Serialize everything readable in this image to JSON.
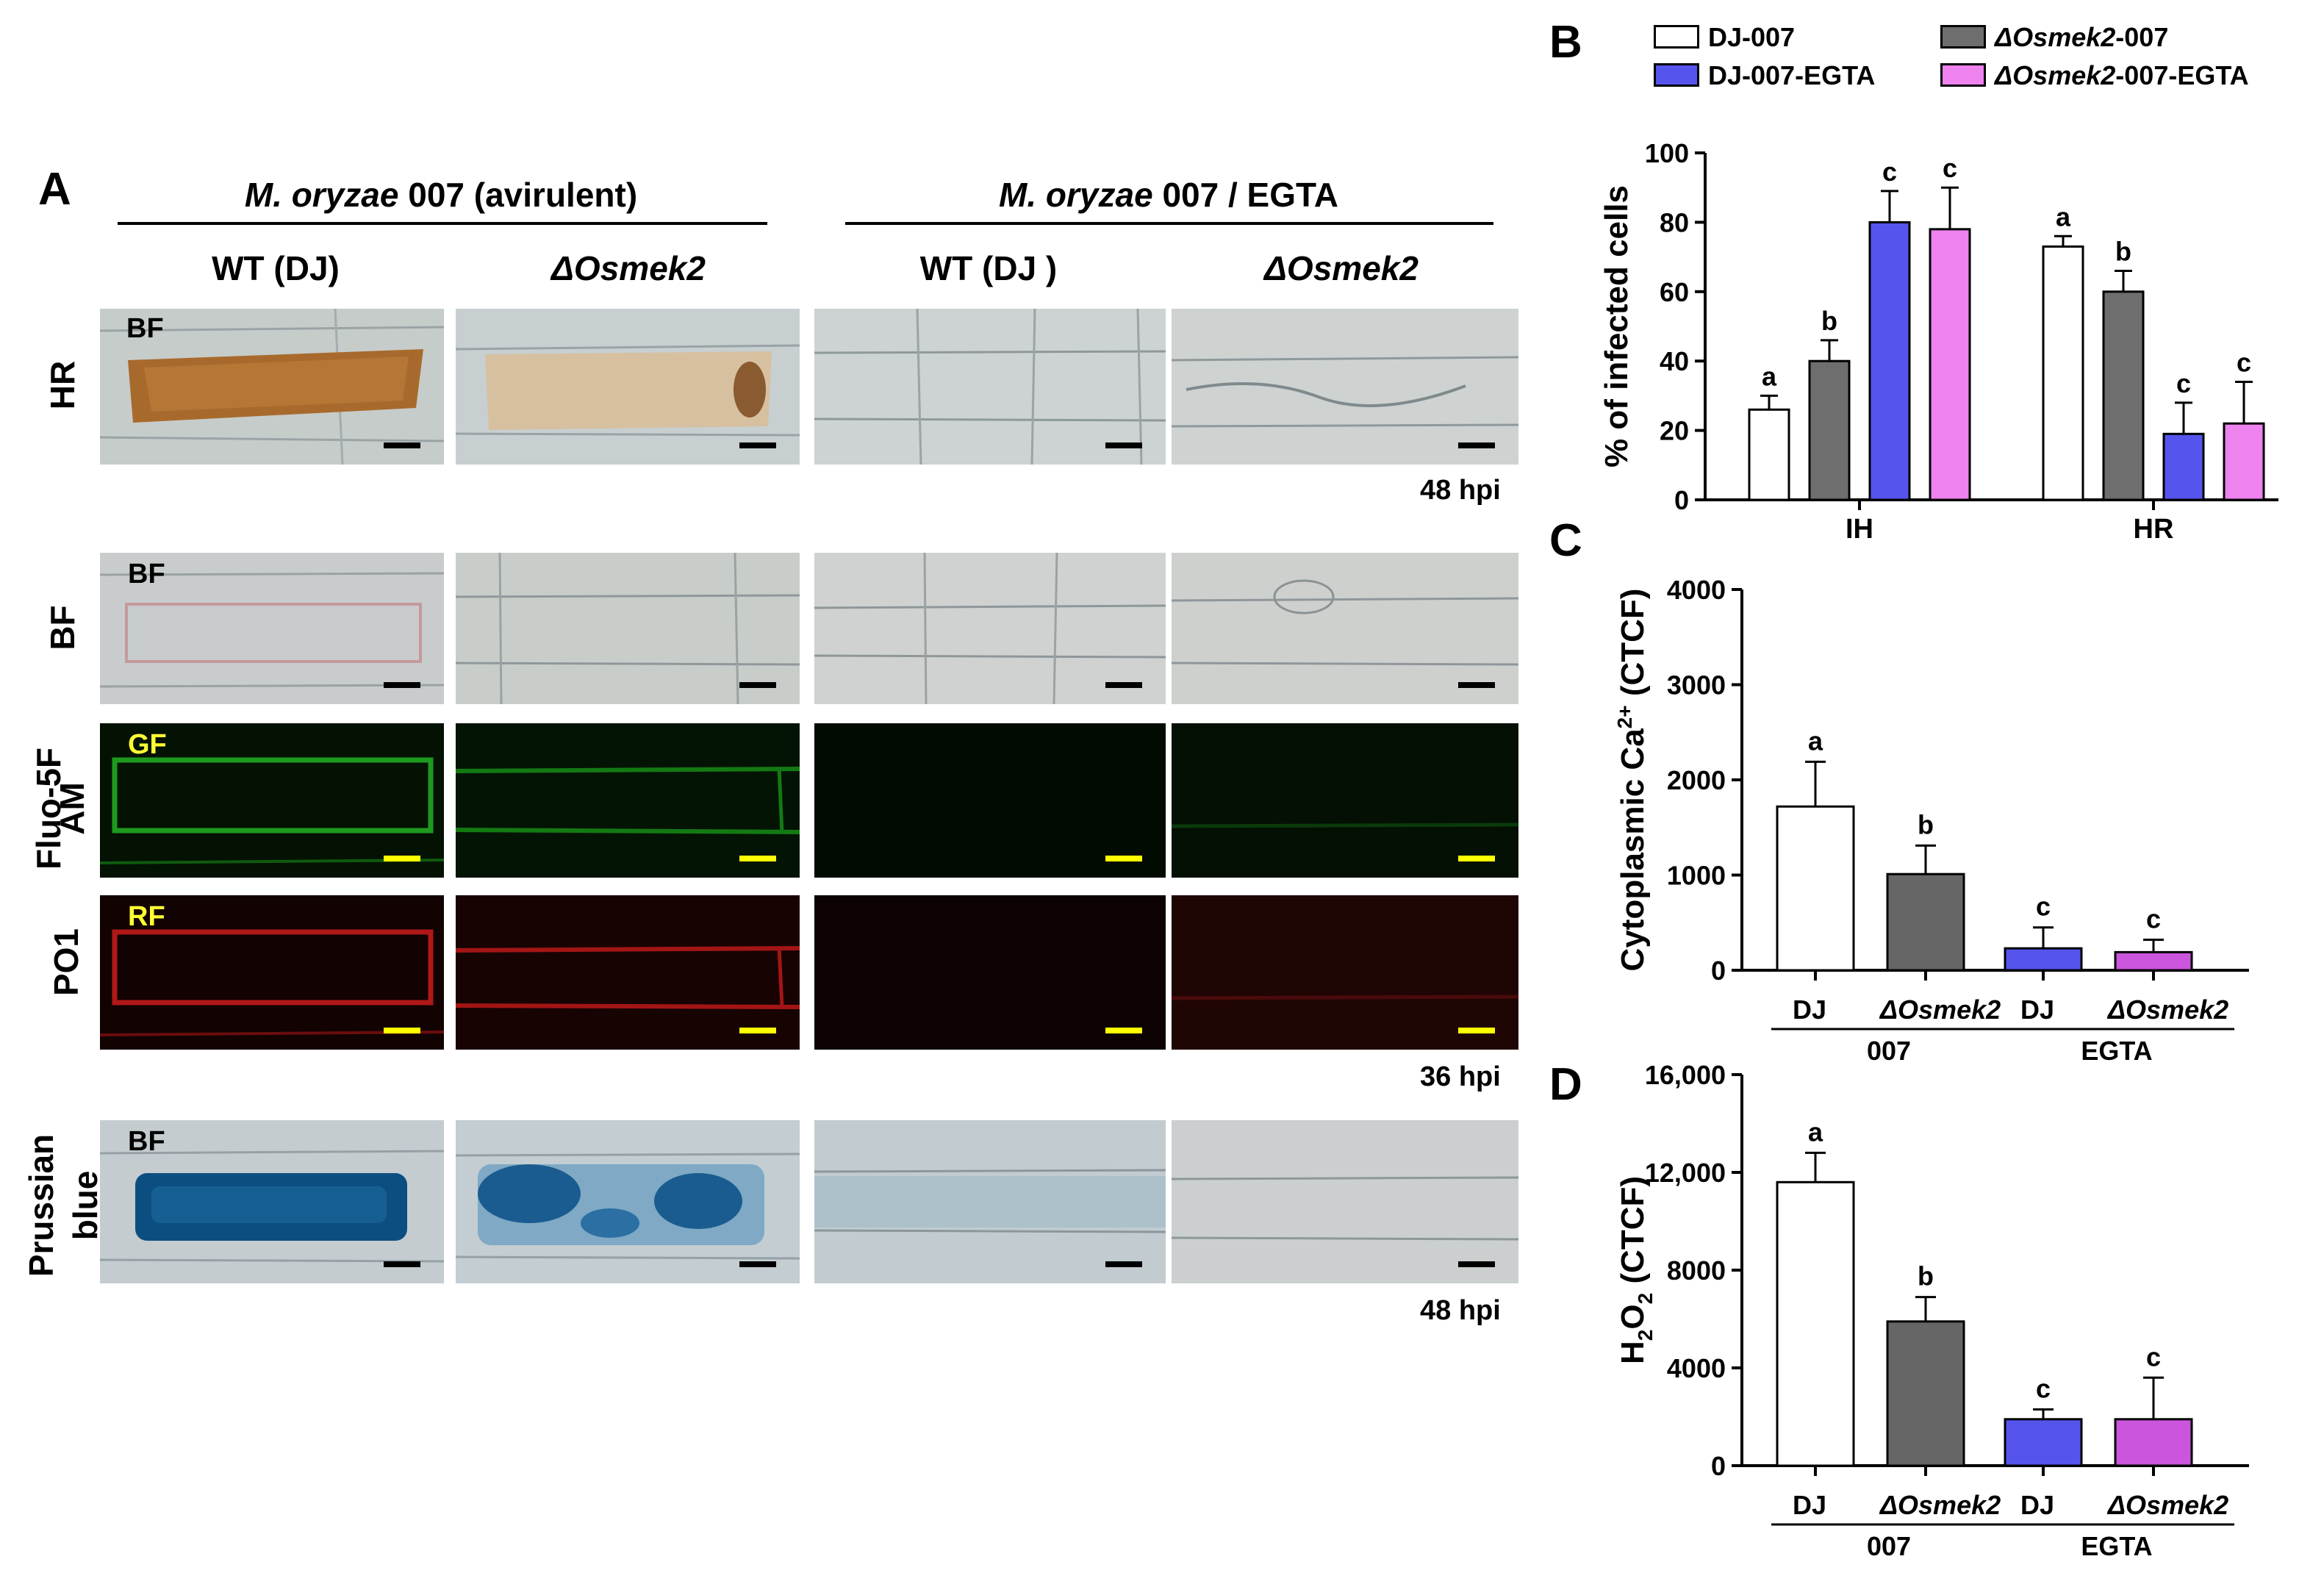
{
  "panel_A": {
    "letter": "A",
    "group_007": {
      "species": "M. oryzae",
      "suffix": " 007 (avirulent)"
    },
    "group_egta": {
      "species": "M. oryzae",
      "suffix": " 007 / EGTA"
    },
    "columns": [
      {
        "label": "WT (DJ)",
        "italic_prefix": "",
        "plain": "WT (DJ)"
      },
      {
        "label": "ΔOsmek2",
        "italic_prefix": "ΔOsmek2",
        "plain": ""
      },
      {
        "label": "WT (DJ )",
        "italic_prefix": "",
        "plain": "WT (DJ )"
      },
      {
        "label": "ΔOsmek2",
        "italic_prefix": "ΔOsmek2",
        "plain": ""
      }
    ],
    "rows": {
      "hr": "HR",
      "bf": "BF",
      "fluo_line1": "Fluo-5F",
      "fluo_line2": "AM",
      "po1": "PO1",
      "prussian_line1": "Prussian",
      "prussian_line2": "blue"
    },
    "tile_tags": {
      "bf": "BF",
      "gf": "GF",
      "rf": "RF"
    },
    "hpi_labels": [
      "48 hpi",
      "36 hpi",
      "48 hpi"
    ]
  },
  "legend": {
    "items": [
      {
        "label": "DJ-007",
        "color": "#ffffff"
      },
      {
        "label_italic": "ΔOsmek2",
        "label_rest": "-007",
        "color": "#6e6e6e"
      },
      {
        "label": "DJ-007-EGTA",
        "color": "#5555ee"
      },
      {
        "label_italic": "ΔOsmek2",
        "label_rest": "-007-EGTA",
        "color": "#ee82ee"
      }
    ]
  },
  "chart_data": [
    {
      "panel": "B",
      "type": "bar",
      "ylabel": "% of infected cells",
      "ylim": [
        0,
        100
      ],
      "yticks": [
        "0",
        "20",
        "40",
        "60",
        "80",
        "100"
      ],
      "categories": [
        "IH",
        "HR"
      ],
      "series": [
        {
          "name": "DJ-007",
          "color": "#ffffff",
          "values": [
            26,
            73
          ],
          "errors": [
            4,
            3
          ],
          "letters": [
            "a",
            "a"
          ]
        },
        {
          "name": "ΔOsmek2-007",
          "color": "#6e6e6e",
          "values": [
            40,
            60
          ],
          "errors": [
            6,
            6
          ],
          "letters": [
            "b",
            "b"
          ]
        },
        {
          "name": "DJ-007-EGTA",
          "color": "#5555ee",
          "values": [
            80,
            19
          ],
          "errors": [
            9,
            9
          ],
          "letters": [
            "c",
            "c"
          ]
        },
        {
          "name": "ΔOsmek2-007-EGTA",
          "color": "#ee82ee",
          "values": [
            78,
            22
          ],
          "errors": [
            12,
            12
          ],
          "letters": [
            "c",
            "c"
          ]
        }
      ]
    },
    {
      "panel": "C",
      "type": "bar",
      "ylabel_main": "Cytoplasmic Ca",
      "ylabel_sup": "2+",
      "ylabel_end": " (CTCF)",
      "ylim": [
        0,
        4000
      ],
      "yticks": [
        "0",
        "1000",
        "2000",
        "3000",
        "4000"
      ],
      "categories": [
        "DJ",
        "ΔOsmek2",
        "DJ",
        "ΔOsmek2"
      ],
      "groups": [
        "007",
        "EGTA"
      ],
      "values": [
        1720,
        1010,
        230,
        190
      ],
      "errors": [
        470,
        300,
        220,
        130
      ],
      "letters": [
        "a",
        "b",
        "c",
        "c"
      ],
      "colors": [
        "#ffffff",
        "#666666",
        "#5555ee",
        "#cc55dd"
      ]
    },
    {
      "panel": "D",
      "type": "bar",
      "ylabel_main": "H",
      "ylabel_sub1": "2",
      "ylabel_mid": "O",
      "ylabel_sub2": "2",
      "ylabel_end": " (CTCF)",
      "ylim": [
        0,
        16000
      ],
      "yticks": [
        "0",
        "4000",
        "8000",
        "12,000",
        "16,000"
      ],
      "categories": [
        "DJ",
        "ΔOsmek2",
        "DJ",
        "ΔOsmek2"
      ],
      "groups": [
        "007",
        "EGTA"
      ],
      "values": [
        11600,
        5900,
        1900,
        1900
      ],
      "errors": [
        1200,
        1000,
        400,
        1700
      ],
      "letters": [
        "a",
        "b",
        "c",
        "c"
      ],
      "colors": [
        "#ffffff",
        "#666666",
        "#5555ee",
        "#cc55dd"
      ]
    }
  ],
  "panel_letters": {
    "b": "B",
    "c": "C",
    "d": "D"
  }
}
